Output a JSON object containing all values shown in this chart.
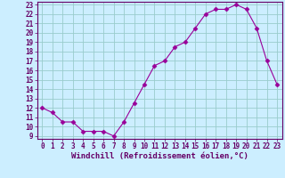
{
  "x": [
    0,
    1,
    2,
    3,
    4,
    5,
    6,
    7,
    8,
    9,
    10,
    11,
    12,
    13,
    14,
    15,
    16,
    17,
    18,
    19,
    20,
    21,
    22,
    23
  ],
  "y": [
    12,
    11.5,
    10.5,
    10.5,
    9.5,
    9.5,
    9.5,
    9,
    10.5,
    12.5,
    14.5,
    16.5,
    17,
    18.5,
    19,
    20.5,
    22,
    22.5,
    22.5,
    23,
    22.5,
    20.5,
    17,
    14.5
  ],
  "line_color": "#990099",
  "marker": "D",
  "marker_size": 2.5,
  "bg_color": "#cceeff",
  "grid_color": "#99cccc",
  "xlabel": "Windchill (Refroidissement éolien,°C)",
  "ylim": [
    9,
    23
  ],
  "xlim": [
    -0.5,
    23.5
  ],
  "yticks": [
    9,
    10,
    11,
    12,
    13,
    14,
    15,
    16,
    17,
    18,
    19,
    20,
    21,
    22,
    23
  ],
  "xticks": [
    0,
    1,
    2,
    3,
    4,
    5,
    6,
    7,
    8,
    9,
    10,
    11,
    12,
    13,
    14,
    15,
    16,
    17,
    18,
    19,
    20,
    21,
    22,
    23
  ],
  "tick_fontsize": 5.5,
  "xlabel_fontsize": 6.5,
  "text_color": "#660066",
  "spine_color": "#660066"
}
